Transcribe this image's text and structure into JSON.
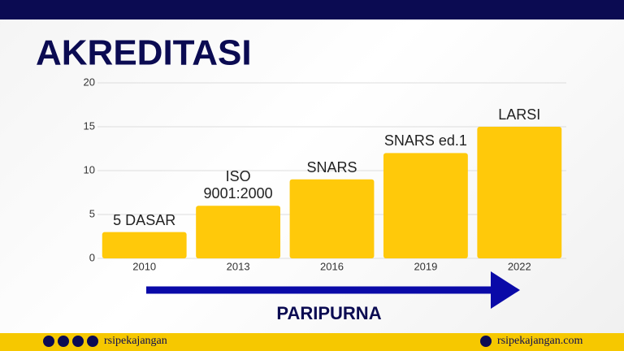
{
  "chart_data": {
    "type": "bar",
    "title": "AKREDITASI",
    "categories": [
      "2010",
      "2013",
      "2016",
      "2019",
      "2022"
    ],
    "values": [
      3,
      6,
      9,
      12,
      15
    ],
    "annotations": [
      "5 DASAR",
      "ISO 9001:2000",
      "SNARS",
      "SNARS ed.1",
      "LARSI"
    ],
    "color": "#ffc90a",
    "ylim": [
      0,
      20
    ],
    "yticks": [
      0,
      5,
      10,
      15,
      20
    ],
    "grid": true,
    "arrow_label": "PARIPURNA"
  },
  "footer": {
    "left": "rsipekajangan",
    "right": "rsipekajangan.com"
  }
}
